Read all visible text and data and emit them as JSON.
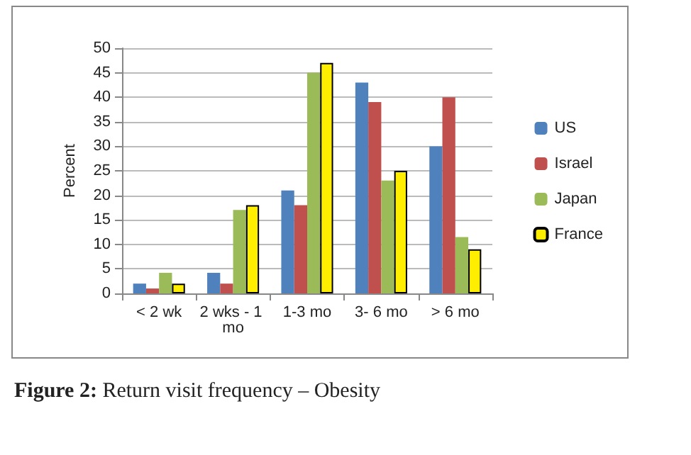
{
  "chart_data": {
    "type": "bar",
    "title": "Figure 2: Return visit frequency – Obesity",
    "ylabel": "Percent",
    "categories": [
      "< 2 wk",
      "2 wks - 1 mo",
      "1-3 mo",
      "3- 6 mo",
      "> 6 mo"
    ],
    "series": [
      {
        "name": "US",
        "color": "#4f81bd",
        "values": [
          2,
          4.2,
          21,
          43,
          30
        ]
      },
      {
        "name": "Israel",
        "color": "#c0504d",
        "values": [
          1,
          2,
          18,
          39,
          40
        ]
      },
      {
        "name": "Japan",
        "color": "#9bbb59",
        "values": [
          4.2,
          17,
          45,
          23,
          11.5
        ]
      },
      {
        "name": "France",
        "color": "#ffee00",
        "values": [
          2,
          18,
          47,
          25,
          9
        ]
      }
    ],
    "ylim": [
      0,
      50
    ],
    "yticks": [
      0,
      5,
      10,
      15,
      20,
      25,
      30,
      35,
      40,
      45,
      50
    ],
    "grid": "y",
    "legend": "right"
  }
}
